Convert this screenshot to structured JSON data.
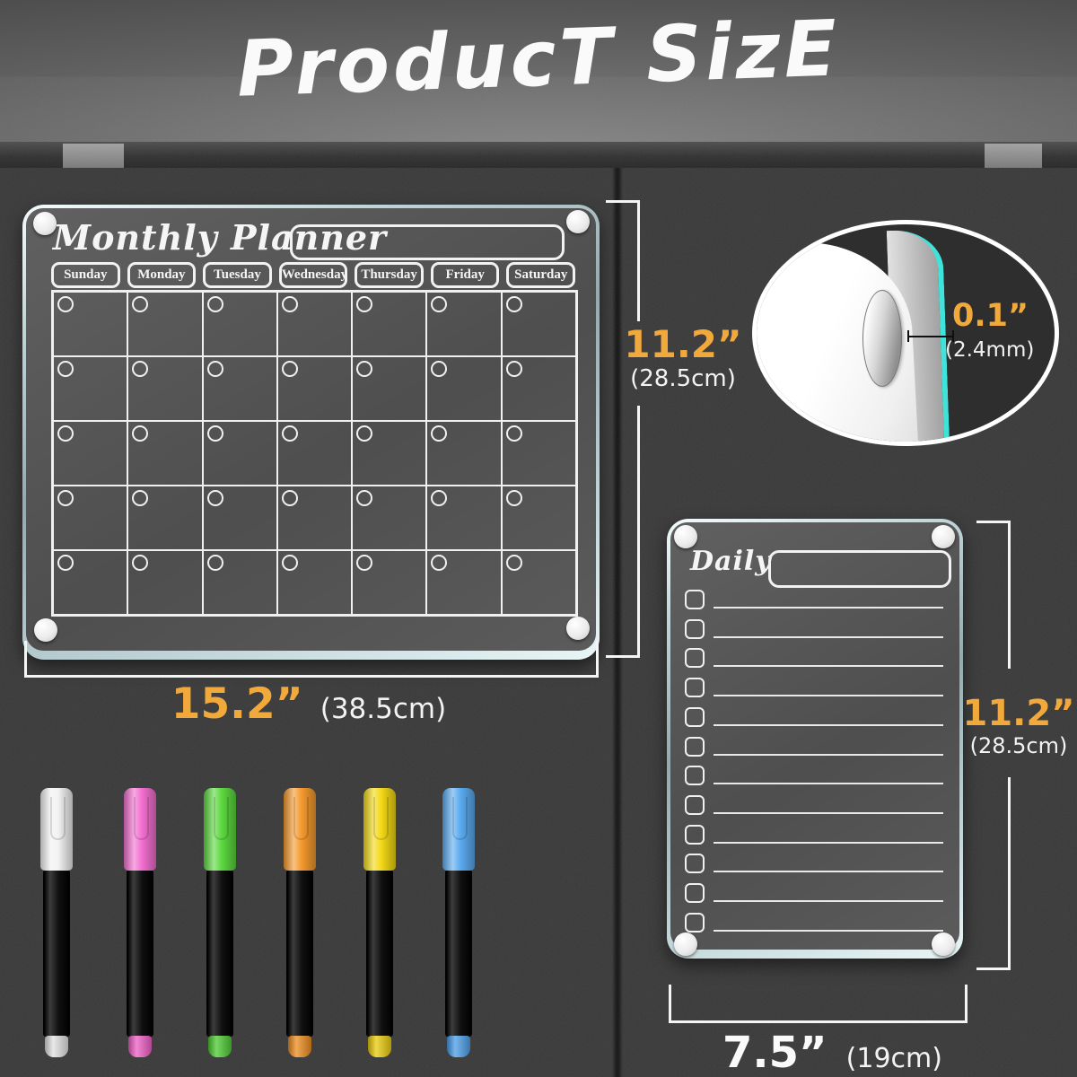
{
  "page_title": "ProducT SizE",
  "colors": {
    "accent_gold": "#F2A93C",
    "edge_glow_cyan": "#3FE3DA",
    "bracket_white": "#F5F5F5"
  },
  "monthly_board": {
    "title": "Monthly Planner",
    "day_headers": [
      "Sunday",
      "Monday",
      "Tuesday",
      "Wednesday",
      "Thursday",
      "Friday",
      "Saturday"
    ],
    "grid_rows": 5,
    "grid_cols": 7,
    "height_label_in": "11.2”",
    "height_label_cm": "(28.5cm)",
    "width_label_in": "15.2”",
    "width_label_cm": "(38.5cm)"
  },
  "thickness_inset": {
    "thickness_in": "0.1”",
    "thickness_mm": "(2.4mm)"
  },
  "daily_board": {
    "title": "Daily",
    "checklist_rows": 12,
    "height_label_in": "11.2”",
    "height_label_cm": "(28.5cm)",
    "width_label_in": "7.5”",
    "width_label_cm": "(19cm)"
  },
  "markers": [
    {
      "name": "white",
      "cap_color": "#F2F2F2",
      "plug_color": "#E2E2E2"
    },
    {
      "name": "pink",
      "cap_color": "#F36FD0",
      "plug_color": "#EE5EC6"
    },
    {
      "name": "green",
      "cap_color": "#5CD93F",
      "plug_color": "#4CCB31"
    },
    {
      "name": "orange",
      "cap_color": "#F59A2E",
      "plug_color": "#EC8C1E"
    },
    {
      "name": "yellow",
      "cap_color": "#F3D916",
      "plug_color": "#E9CC0C"
    },
    {
      "name": "blue",
      "cap_color": "#5BABF0",
      "plug_color": "#4A9DE8"
    }
  ]
}
